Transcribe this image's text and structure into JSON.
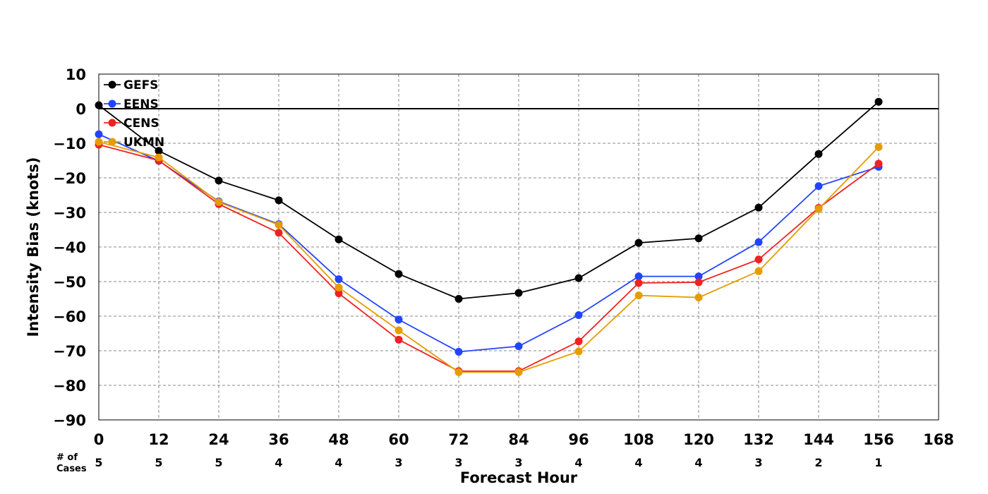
{
  "chart_data": {
    "type": "line",
    "xlabel": "Forecast Hour",
    "ylabel": "Intensity Bias (knots)",
    "xlim": [
      0,
      168
    ],
    "ylim": [
      -90,
      10
    ],
    "x_ticks": [
      0,
      12,
      24,
      36,
      48,
      60,
      72,
      84,
      96,
      108,
      120,
      132,
      144,
      156,
      168
    ],
    "y_ticks": [
      10,
      0,
      -10,
      -20,
      -30,
      -40,
      -50,
      -60,
      -70,
      -80,
      -90
    ],
    "grid": true,
    "zero_line": true,
    "legend_position": "top-left",
    "x": [
      0,
      12,
      24,
      36,
      48,
      60,
      72,
      84,
      96,
      108,
      120,
      132,
      144,
      156
    ],
    "series": [
      {
        "name": "GEFS",
        "color": "#000000",
        "values": [
          1,
          -12.2,
          -20.8,
          -26.5,
          -37.8,
          -47.8,
          -55,
          -53.3,
          -49,
          -38.8,
          -37.5,
          -28.6,
          -13.1,
          2
        ]
      },
      {
        "name": "EENS",
        "color": "#2244ff",
        "values": [
          -7.4,
          -15.1,
          -26.8,
          -33.4,
          -49.3,
          -61,
          -70.3,
          -68.7,
          -59.7,
          -48.5,
          -48.5,
          -38.6,
          -22.4,
          -16.8
        ]
      },
      {
        "name": "CENS",
        "color": "#ee2222",
        "values": [
          -10.4,
          -15,
          -27.6,
          -35.9,
          -53.4,
          -66.8,
          -75.9,
          -75.9,
          -67.3,
          -50.4,
          -50.2,
          -43.6,
          -28.7,
          -15.9
        ]
      },
      {
        "name": "UKMN",
        "color": "#e69c00",
        "values": [
          -9.6,
          -14.1,
          -27,
          -33.6,
          -51.7,
          -64.1,
          -76.2,
          -76.2,
          -70.2,
          -54,
          -54.6,
          -47,
          -29,
          -11.1
        ]
      }
    ],
    "cases_label": "# of Cases",
    "cases": [
      5,
      5,
      5,
      4,
      4,
      3,
      3,
      3,
      4,
      4,
      4,
      3,
      2,
      1
    ]
  }
}
